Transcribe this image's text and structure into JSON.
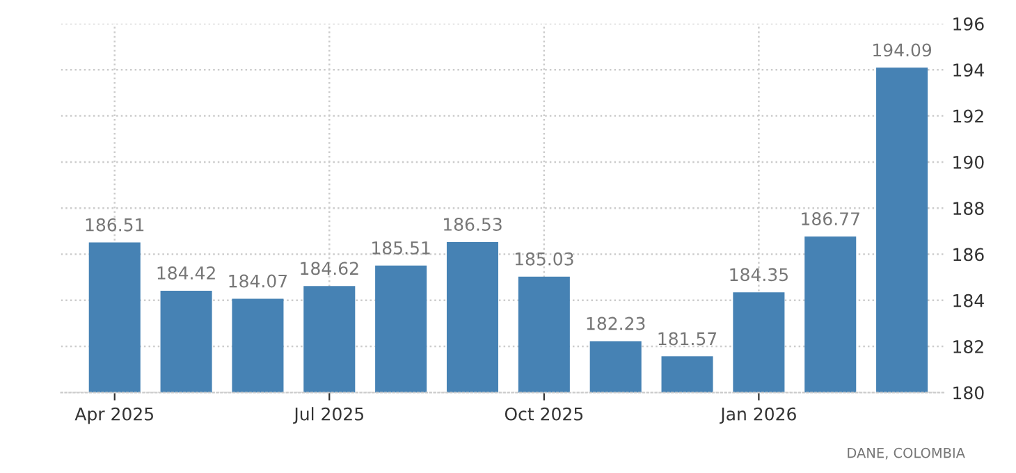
{
  "chart_data": {
    "type": "bar",
    "categories": [
      "Apr 2025",
      null,
      null,
      "Jul 2025",
      null,
      null,
      "Oct 2025",
      null,
      null,
      "Jan 2026",
      null,
      null
    ],
    "values": [
      186.51,
      184.42,
      184.07,
      184.62,
      185.51,
      186.53,
      185.03,
      182.23,
      181.57,
      184.35,
      186.77,
      194.09
    ],
    "color": "#4682b4",
    "data_labels": true,
    "ylim": [
      180,
      196
    ],
    "yticks": [
      180,
      182,
      184,
      186,
      188,
      190,
      192,
      194,
      196
    ],
    "grid": true,
    "annotations": [
      "DANE, COLOMBIA"
    ]
  }
}
